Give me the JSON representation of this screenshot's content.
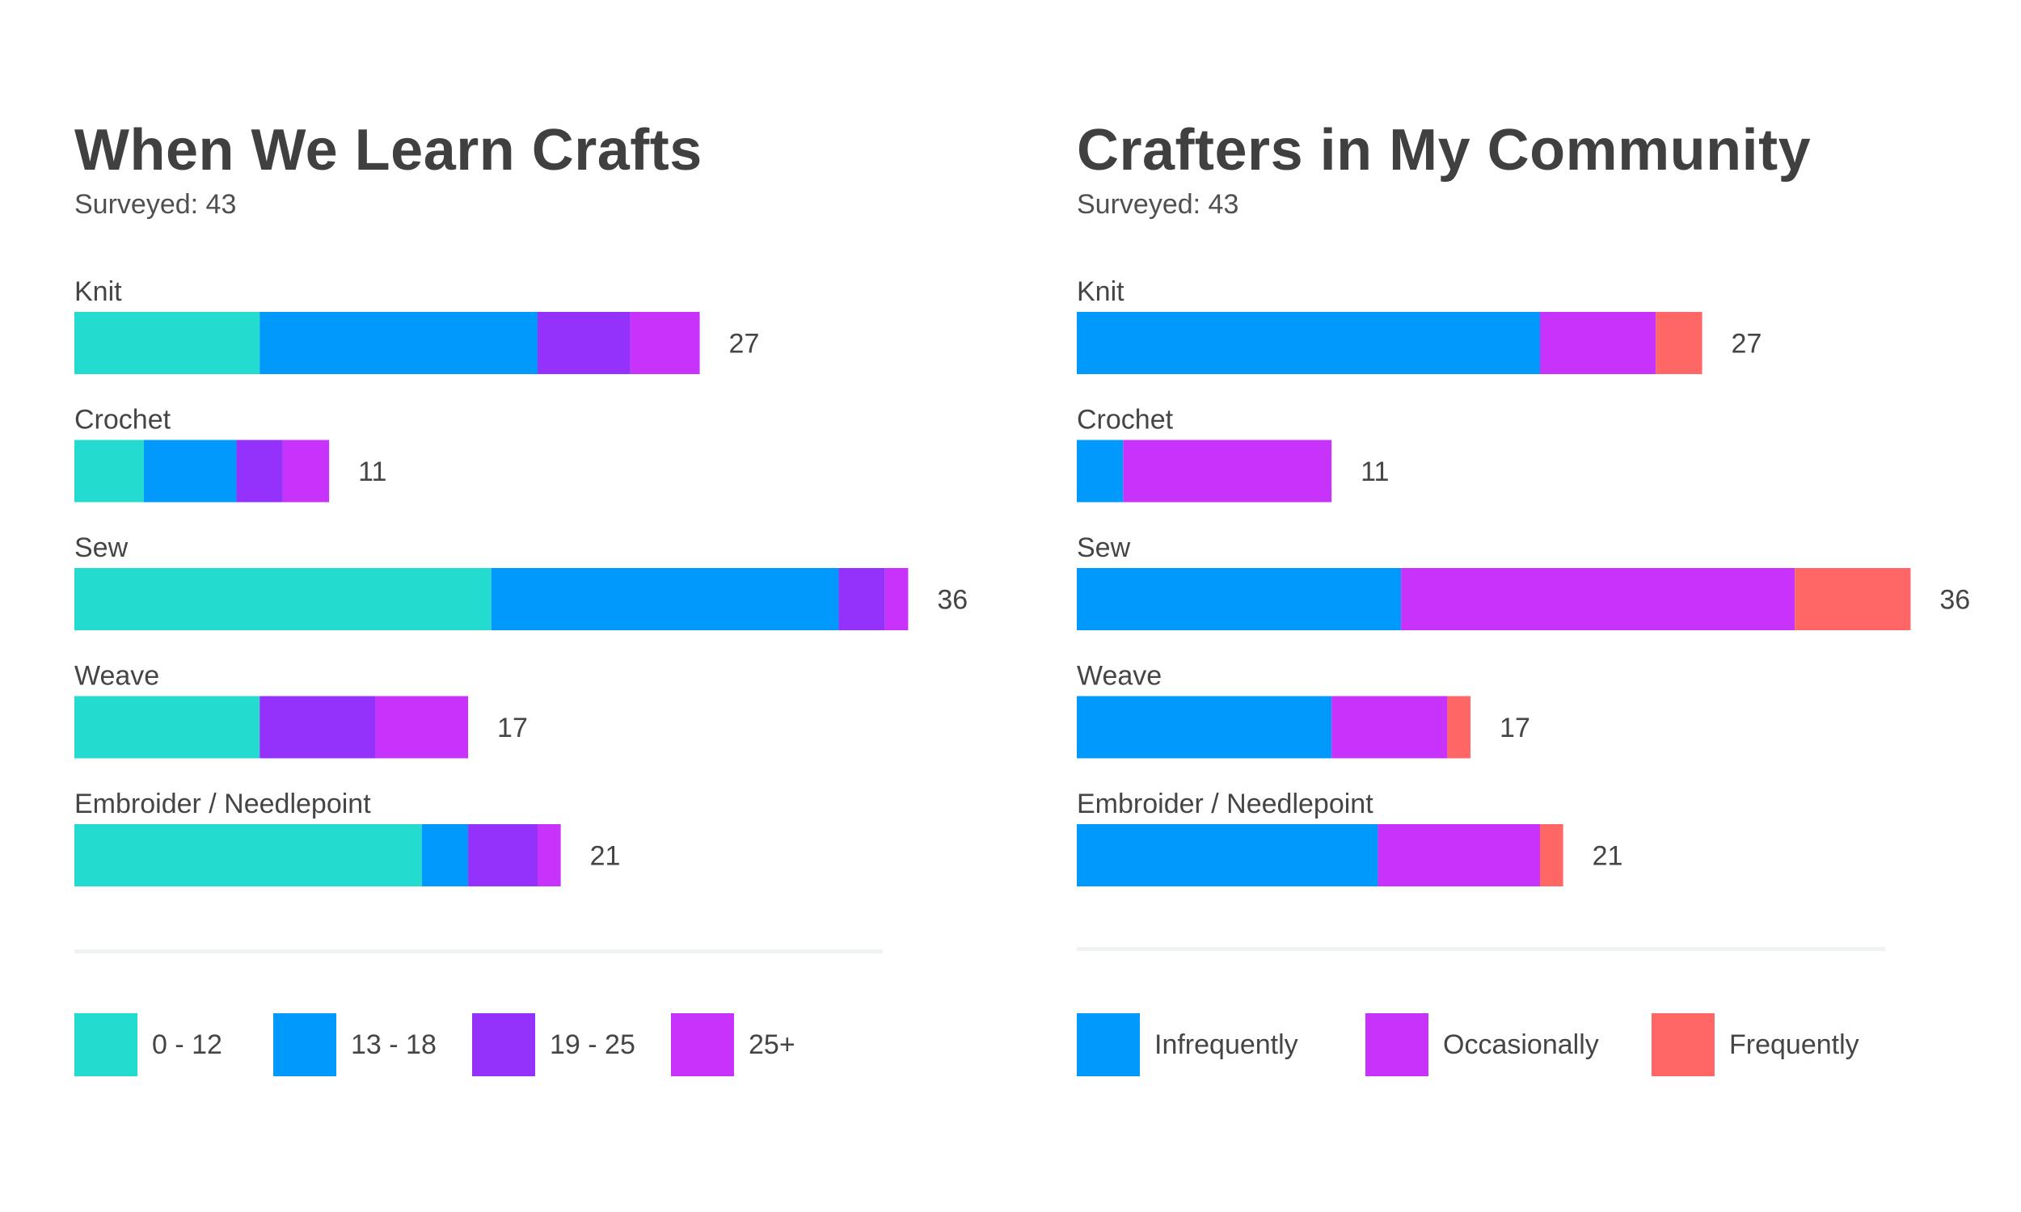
{
  "chart_data": [
    {
      "type": "bar",
      "orientation": "horizontal",
      "stacked": true,
      "title": "When We Learn Crafts",
      "subtitle": "Surveyed: 43",
      "categories": [
        "Knit",
        "Crochet",
        "Sew",
        "Weave",
        "Embroider / Needlepoint"
      ],
      "series": [
        {
          "name": "0 - 12",
          "color": "#23dccf",
          "values": [
            8,
            3,
            18,
            8,
            15
          ]
        },
        {
          "name": "13 - 18",
          "color": "#0299fc",
          "values": [
            12,
            4,
            15,
            0,
            2
          ]
        },
        {
          "name": "19 - 25",
          "color": "#9432fc",
          "values": [
            4,
            2,
            2,
            5,
            3
          ]
        },
        {
          "name": "25+",
          "color": "#c833fc",
          "values": [
            3,
            2,
            1,
            4,
            1
          ]
        }
      ],
      "totals": [
        "27",
        "11",
        "36",
        "17",
        "21"
      ],
      "legend_position": "bottom",
      "grid": false
    },
    {
      "type": "bar",
      "orientation": "horizontal",
      "stacked": true,
      "title": "Crafters in My Community",
      "subtitle": "Surveyed: 43",
      "categories": [
        "Knit",
        "Crochet",
        "Sew",
        "Weave",
        "Embroider / Needlepoint"
      ],
      "series": [
        {
          "name": "Infrequently",
          "color": "#0299fc",
          "values": [
            20,
            2,
            14,
            11,
            13
          ]
        },
        {
          "name": "Occasionally",
          "color": "#c833fc",
          "values": [
            5,
            9,
            17,
            5,
            7
          ]
        },
        {
          "name": "Frequently",
          "color": "#ff6666",
          "values": [
            2,
            0,
            5,
            1,
            1
          ]
        }
      ],
      "totals": [
        "27",
        "11",
        "36",
        "17",
        "21"
      ],
      "legend_position": "bottom",
      "grid": false
    }
  ]
}
